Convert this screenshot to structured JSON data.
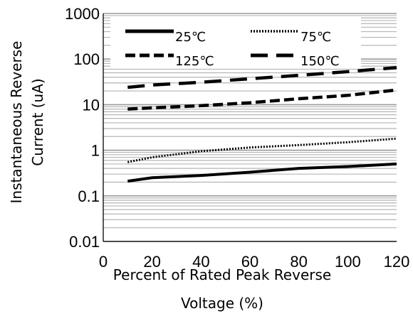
{
  "chart_data": {
    "type": "line",
    "title": "",
    "xlabel": [
      "Percent of Rated Peak Reverse",
      "Voltage (%)"
    ],
    "ylabel": [
      "Instantaneous Reverse",
      "Current (uA)"
    ],
    "xlim": [
      0,
      120
    ],
    "ylim": [
      0.01,
      1000
    ],
    "y_scale": "log",
    "grid": true,
    "legend_placement": "top",
    "x_ticks": [
      "0",
      "20",
      "40",
      "60",
      "80",
      "100",
      "120"
    ],
    "y_ticks": [
      "0.01",
      "0.1",
      "1",
      "10",
      "100",
      "1000"
    ],
    "series": [
      {
        "name": "25℃",
        "style": "solid",
        "x": [
          10,
          20,
          40,
          60,
          80,
          100,
          120
        ],
        "y": [
          0.21,
          0.25,
          0.28,
          0.33,
          0.4,
          0.44,
          0.5
        ]
      },
      {
        "name": "75℃",
        "style": "dotted",
        "x": [
          10,
          20,
          40,
          60,
          80,
          100,
          120
        ],
        "y": [
          0.55,
          0.7,
          0.95,
          1.15,
          1.3,
          1.5,
          1.8
        ]
      },
      {
        "name": "125℃",
        "style": "dashed",
        "x": [
          10,
          20,
          40,
          60,
          80,
          100,
          120
        ],
        "y": [
          8,
          8.5,
          9.5,
          11,
          13.5,
          16,
          21
        ]
      },
      {
        "name": "150℃",
        "style": "longdash",
        "x": [
          10,
          20,
          40,
          60,
          80,
          100,
          120
        ],
        "y": [
          24,
          27,
          31,
          37,
          44,
          53,
          65
        ]
      }
    ],
    "colors": {
      "series": "#000000",
      "grid": "#8c8c8c",
      "axis": "#000000"
    }
  }
}
